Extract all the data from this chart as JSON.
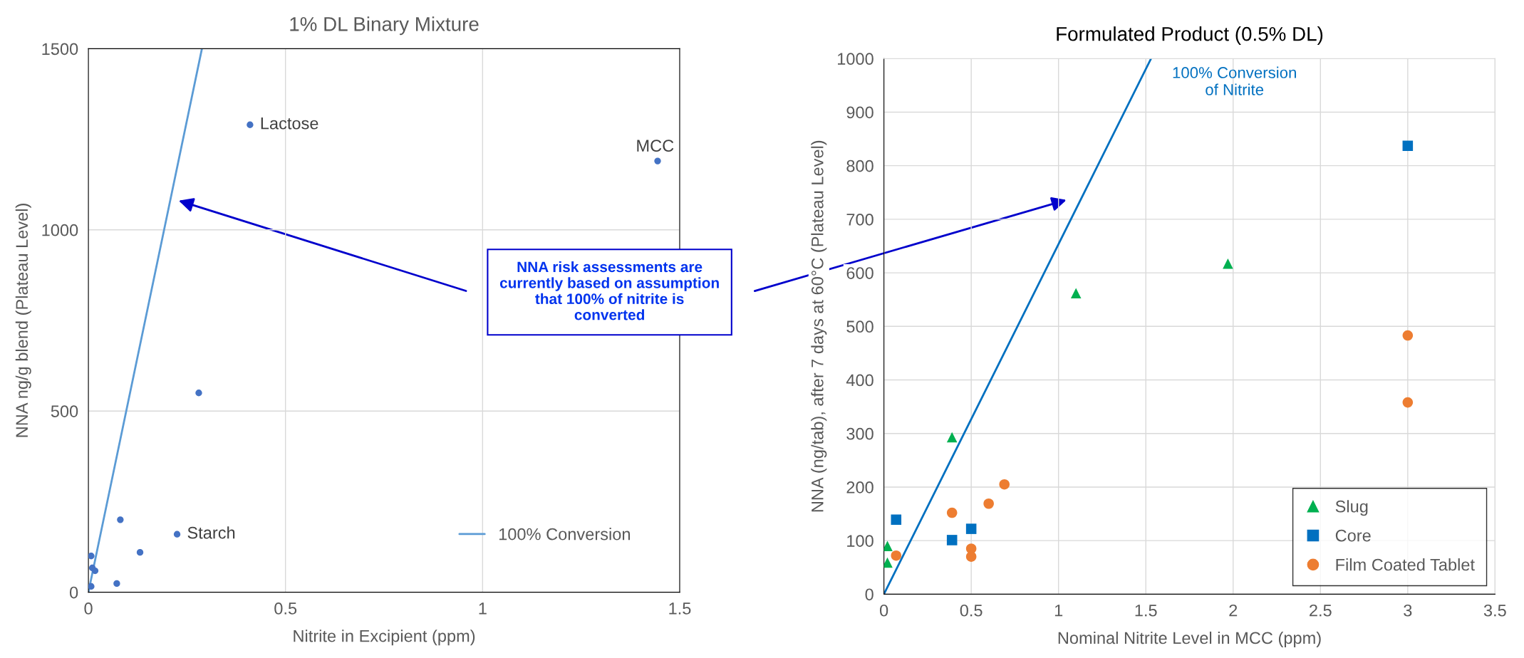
{
  "chart_data": [
    {
      "type": "scatter",
      "title": "1% DL Binary Mixture",
      "xlabel": "Nitrite in Excipient (ppm)",
      "ylabel": "NNA ng/g blend (Plateau Level)",
      "xlim": [
        0,
        1.5
      ],
      "xticks": [
        0,
        0.5,
        1,
        1.5
      ],
      "ylim": [
        0,
        1500
      ],
      "yticks": [
        0,
        500,
        1000,
        1500
      ],
      "grid": true,
      "legend": "bottom right",
      "series": [
        {
          "color": "#4472c4",
          "marker": "circle",
          "x": [
            0.41,
            1.444,
            0.28,
            0.081,
            0.225,
            0.131,
            0.007,
            0.01,
            0.017,
            0.007,
            0.072
          ],
          "values": [
            1290,
            1190,
            550,
            200,
            160,
            110,
            100,
            67,
            59,
            16,
            24
          ]
        },
        {
          "type": "line",
          "name": "100% Conversion",
          "color": "#5b9bd5",
          "marker": "none",
          "x": [
            0,
            0.288
          ],
          "values": [
            0,
            1500
          ]
        }
      ],
      "annotations": [
        {
          "text": "Lactose",
          "x": 0.41,
          "y": 1290
        },
        {
          "text": "MCC",
          "x": 1.444,
          "y": 1190
        },
        {
          "text": "Starch",
          "x": 0.225,
          "y": 160
        },
        "NNA risk assessments are\ncurrently based on assumption\nthat 100% of nitrite is\nconverted"
      ]
    },
    {
      "type": "scatter",
      "title": "Formulated Product (0.5% DL)",
      "xlabel": "Nominal Nitrite Level in MCC (ppm)",
      "ylabel": "NNA (ng/tab), after 7 days at 60°C (Plateau Level)",
      "xlim": [
        0,
        3.5
      ],
      "xticks": [
        0,
        0.5,
        1,
        1.5,
        2,
        2.5,
        3,
        3.5
      ],
      "ylim": [
        0,
        1000
      ],
      "yticks": [
        0,
        100,
        200,
        300,
        400,
        500,
        600,
        700,
        800,
        900,
        1000
      ],
      "grid": true,
      "legend": "bottom right",
      "series": [
        {
          "name": "Slug",
          "color": "#00b050",
          "marker": "triangle",
          "x": [
            0.02,
            0.02,
            0.39,
            1.1,
            1.97
          ],
          "values": [
            90,
            59,
            293,
            562,
            617
          ]
        },
        {
          "name": "Core",
          "color": "#0070c0",
          "marker": "square",
          "x": [
            0.07,
            0.39,
            0.5,
            3.0
          ],
          "values": [
            139,
            101,
            122,
            837
          ]
        },
        {
          "name": "Film Coated Tablet",
          "color": "#ed7d31",
          "marker": "circle",
          "x": [
            0.07,
            0.39,
            0.5,
            0.5,
            0.6,
            0.69,
            3.0,
            3.0
          ],
          "values": [
            72,
            152,
            85,
            70,
            169,
            205,
            483,
            358
          ]
        },
        {
          "type": "line",
          "name": "100% Conversion\nof Nitrite",
          "color": "#0070c0",
          "marker": "none",
          "x": [
            0,
            1.53
          ],
          "values": [
            0,
            1000
          ]
        }
      ]
    }
  ]
}
